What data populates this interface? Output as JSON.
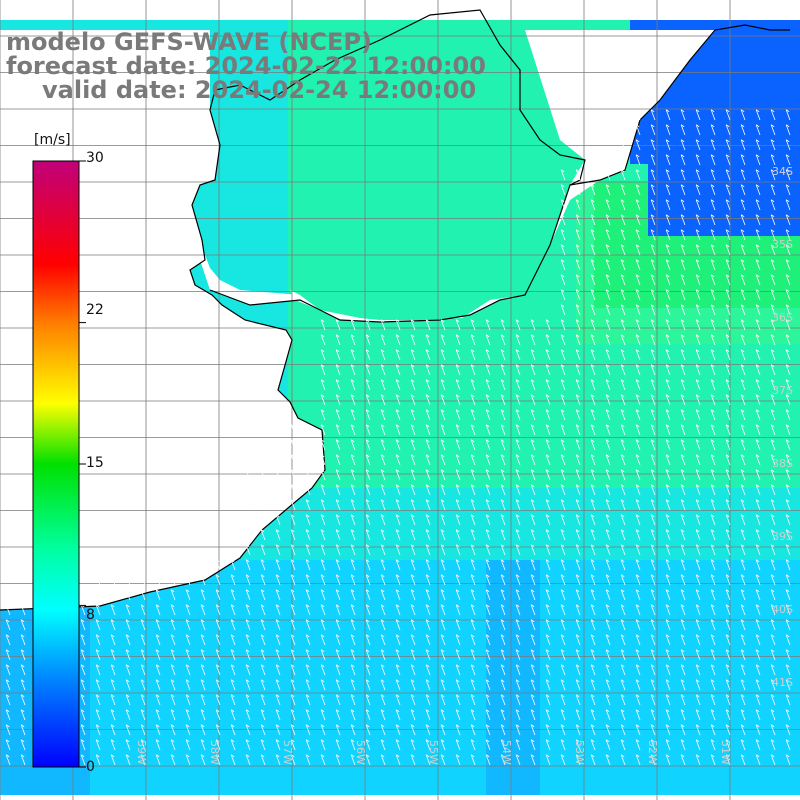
{
  "title": {
    "model": "modelo GEFS-WAVE (NCEP)",
    "forecast": "forecast date: 2024-02-22 12:00:00",
    "valid": "valid date: 2024-02-24 12:00:00"
  },
  "colorbar": {
    "unit": "[m/s]",
    "ticks": [
      "30",
      "22",
      "15",
      "8",
      "0"
    ],
    "tick_values": [
      30,
      22,
      15,
      8,
      0
    ],
    "range": [
      0,
      30
    ],
    "colors": [
      "#0000ff",
      "#00a0ff",
      "#00ffff",
      "#00ff80",
      "#00e000",
      "#ffff00",
      "#ffa000",
      "#ff0000",
      "#ff0080",
      "#c0007a"
    ]
  },
  "map": {
    "variable": "wind speed",
    "land_color": "#ffffff",
    "grid_color": "#808080",
    "coast_color": "#000000",
    "wind_direction": "from south-east toward north-west",
    "lat_labels": [
      "34S",
      "35S",
      "36S",
      "37S",
      "38S",
      "39S",
      "40S",
      "41S"
    ],
    "lon_labels": [
      "60W",
      "59W",
      "58W",
      "57W",
      "56W",
      "55W",
      "54W",
      "53W",
      "52W",
      "51W"
    ]
  }
}
